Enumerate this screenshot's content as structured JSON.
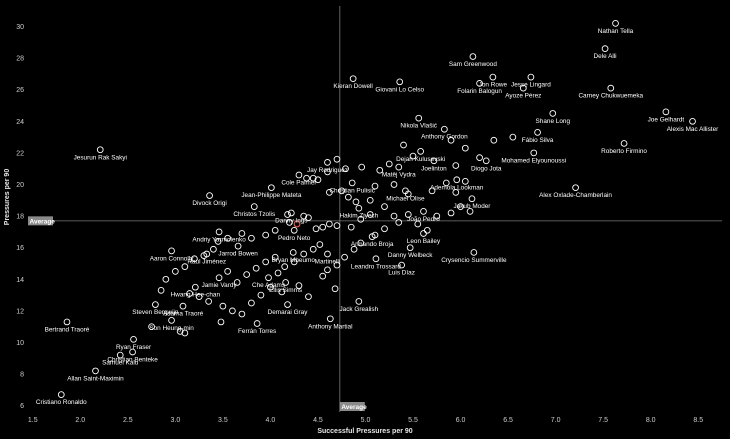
{
  "chart_data": {
    "type": "scatter",
    "xlabel": "Successful Pressures per 90",
    "ylabel": "Pressures per 90",
    "xlim": [
      1.45,
      8.75
    ],
    "ylim": [
      5.6,
      31.3
    ],
    "xticks": [
      "1.5",
      "2.0",
      "2.5",
      "3.0",
      "3.5",
      "4.0",
      "4.5",
      "5.0",
      "5.5",
      "6.0",
      "6.5",
      "7.0",
      "7.5",
      "8.0",
      "8.5"
    ],
    "yticks": [
      "6",
      "8",
      "10",
      "12",
      "14",
      "16",
      "18",
      "20",
      "22",
      "24",
      "26",
      "28",
      "30"
    ],
    "average_label": "Average",
    "average": {
      "x": 4.73,
      "y": 17.7
    },
    "colors": {
      "point": "#ffffff",
      "highlight": "#e8604c",
      "average_line": "#7a7a7a",
      "background": "#000000"
    },
    "labeled_points": [
      {
        "name": "Nathan Tella",
        "x": 7.63,
        "y": 30.2
      },
      {
        "name": "Dele Alli",
        "x": 7.52,
        "y": 28.6
      },
      {
        "name": "Sam Greenwood",
        "x": 6.13,
        "y": 28.1
      },
      {
        "name": "Jon Rowe",
        "x": 6.34,
        "y": 26.8
      },
      {
        "name": "Jesse Lingard",
        "x": 6.74,
        "y": 26.8
      },
      {
        "name": "Kieran Dowell",
        "x": 4.87,
        "y": 26.7
      },
      {
        "name": "Giovani Lo Celso",
        "x": 5.36,
        "y": 26.5
      },
      {
        "name": "Folarin Balogun",
        "x": 6.2,
        "y": 26.4
      },
      {
        "name": "Ayoze Pérez",
        "x": 6.66,
        "y": 26.1
      },
      {
        "name": "Carney Chukwuemeka",
        "x": 7.58,
        "y": 26.1
      },
      {
        "name": "Shane Long",
        "x": 6.97,
        "y": 24.5
      },
      {
        "name": "Joe Gelhardt",
        "x": 8.16,
        "y": 24.6
      },
      {
        "name": "Alexis Mac Allister",
        "x": 8.44,
        "y": 24.0
      },
      {
        "name": "Nikola Vlašić",
        "x": 5.56,
        "y": 24.2
      },
      {
        "name": "Fábio Silva",
        "x": 6.81,
        "y": 23.3
      },
      {
        "name": "Anthony Gordon",
        "x": 5.83,
        "y": 23.5
      },
      {
        "name": "Roberto Firmino",
        "x": 7.72,
        "y": 22.6
      },
      {
        "name": "Dejan Kulusevski",
        "x": 5.58,
        "y": 22.1
      },
      {
        "name": "Diogo Jota",
        "x": 6.27,
        "y": 21.5
      },
      {
        "name": "Mohamed Elyounoussi",
        "x": 6.77,
        "y": 22.0
      },
      {
        "name": "Jesurun Rak Sakyi",
        "x": 2.21,
        "y": 22.2
      },
      {
        "name": "Jay Rodriguez",
        "x": 4.6,
        "y": 21.4
      },
      {
        "name": "Joelinton",
        "x": 5.72,
        "y": 21.5
      },
      {
        "name": "Matěj Vydra",
        "x": 5.35,
        "y": 21.1
      },
      {
        "name": "Ademola Lookman",
        "x": 5.96,
        "y": 20.3
      },
      {
        "name": "Cole Palmer",
        "x": 4.3,
        "y": 20.6
      },
      {
        "name": "Christian Pulisic",
        "x": 4.86,
        "y": 20.1
      },
      {
        "name": "Jean-Philippe Mateta",
        "x": 4.01,
        "y": 19.8
      },
      {
        "name": "Michael Olise",
        "x": 5.42,
        "y": 19.6
      },
      {
        "name": "Jakub Moder",
        "x": 6.12,
        "y": 19.1
      },
      {
        "name": "Alex Oxlade-Chamberlain",
        "x": 7.21,
        "y": 19.8
      },
      {
        "name": "Divock Origi",
        "x": 3.36,
        "y": 19.3
      },
      {
        "name": "Hakim Ziyech",
        "x": 4.93,
        "y": 18.5
      },
      {
        "name": "Christos Tzolis",
        "x": 3.83,
        "y": 18.6
      },
      {
        "name": "Danny Ings",
        "x": 4.22,
        "y": 18.2
      },
      {
        "name": "João Pedro",
        "x": 5.61,
        "y": 18.3
      },
      {
        "name": "Andriy Yarmolenko",
        "x": 3.46,
        "y": 17.0
      },
      {
        "name": "Pedro Neto",
        "x": 4.25,
        "y": 17.1
      },
      {
        "name": "Jarrod Bowen",
        "x": 3.66,
        "y": 16.1
      },
      {
        "name": "Armando Broja",
        "x": 5.07,
        "y": 16.7
      },
      {
        "name": "Leon Bailey",
        "x": 5.61,
        "y": 16.9
      },
      {
        "name": "Raúl Jiménez",
        "x": 3.33,
        "y": 15.6
      },
      {
        "name": "Bryan Mbeumo",
        "x": 4.24,
        "y": 15.7
      },
      {
        "name": "Martinelli",
        "x": 4.6,
        "y": 15.6
      },
      {
        "name": "Danny Welbeck",
        "x": 5.47,
        "y": 16.0
      },
      {
        "name": "Aaron Connolly",
        "x": 2.96,
        "y": 15.8
      },
      {
        "name": "Crysencio Summerville",
        "x": 6.14,
        "y": 15.7
      },
      {
        "name": "Leandro Trossard",
        "x": 5.11,
        "y": 15.3
      },
      {
        "name": "Luis Díaz",
        "x": 5.38,
        "y": 14.9
      },
      {
        "name": "Jamie Vardy",
        "x": 3.46,
        "y": 14.1
      },
      {
        "name": "Che Adams",
        "x": 3.98,
        "y": 14.1
      },
      {
        "name": "Ellis Simms",
        "x": 4.16,
        "y": 13.8
      },
      {
        "name": "Hwang Hee-chan",
        "x": 3.21,
        "y": 13.5
      },
      {
        "name": "Steven Bergwijn",
        "x": 2.79,
        "y": 12.4
      },
      {
        "name": "Adama Traoré",
        "x": 3.08,
        "y": 12.3
      },
      {
        "name": "Demarai Gray",
        "x": 4.18,
        "y": 12.4
      },
      {
        "name": "Jack Grealish",
        "x": 4.93,
        "y": 12.6
      },
      {
        "name": "Son Heung-min",
        "x": 2.96,
        "y": 11.4
      },
      {
        "name": "Ferrán Torres",
        "x": 3.86,
        "y": 11.2
      },
      {
        "name": "Anthony Martial",
        "x": 4.63,
        "y": 11.5
      },
      {
        "name": "Bertrand Traoré",
        "x": 1.86,
        "y": 11.3
      },
      {
        "name": "Ryan Fraser",
        "x": 2.56,
        "y": 10.2
      },
      {
        "name": "Christian Benteke",
        "x": 2.55,
        "y": 9.4
      },
      {
        "name": "Samuel Kalu",
        "x": 2.42,
        "y": 9.2
      },
      {
        "name": "Allan Saint-Maximin",
        "x": 2.16,
        "y": 8.2
      },
      {
        "name": "Cristiano Ronaldo",
        "x": 1.8,
        "y": 6.7
      }
    ],
    "unlabeled_points": [
      {
        "x": 4.38,
        "y": 20.4
      },
      {
        "x": 4.45,
        "y": 20.4
      },
      {
        "x": 4.5,
        "y": 20.3
      },
      {
        "x": 4.6,
        "y": 20.8
      },
      {
        "x": 4.62,
        "y": 19.5
      },
      {
        "x": 4.75,
        "y": 19.6
      },
      {
        "x": 4.82,
        "y": 19.2
      },
      {
        "x": 4.9,
        "y": 18.9
      },
      {
        "x": 5.05,
        "y": 19.0
      },
      {
        "x": 5.1,
        "y": 19.9
      },
      {
        "x": 5.3,
        "y": 20.0
      },
      {
        "x": 5.45,
        "y": 19.4
      },
      {
        "x": 5.7,
        "y": 19.6
      },
      {
        "x": 5.85,
        "y": 20.1
      },
      {
        "x": 5.95,
        "y": 19.5
      },
      {
        "x": 6.05,
        "y": 20.2
      },
      {
        "x": 6.1,
        "y": 18.3
      },
      {
        "x": 6.0,
        "y": 18.6
      },
      {
        "x": 5.9,
        "y": 18.2
      },
      {
        "x": 5.75,
        "y": 18.0
      },
      {
        "x": 5.45,
        "y": 18.1
      },
      {
        "x": 5.3,
        "y": 18.0
      },
      {
        "x": 5.2,
        "y": 18.6
      },
      {
        "x": 5.05,
        "y": 18.1
      },
      {
        "x": 4.95,
        "y": 17.8
      },
      {
        "x": 4.85,
        "y": 17.3
      },
      {
        "x": 4.7,
        "y": 17.4
      },
      {
        "x": 4.62,
        "y": 17.5
      },
      {
        "x": 4.55,
        "y": 17.3
      },
      {
        "x": 4.48,
        "y": 17.2
      },
      {
        "x": 4.4,
        "y": 17.9
      },
      {
        "x": 4.35,
        "y": 18.0
      },
      {
        "x": 4.2,
        "y": 17.6
      },
      {
        "x": 4.18,
        "y": 18.1
      },
      {
        "x": 4.05,
        "y": 17.1
      },
      {
        "x": 3.95,
        "y": 16.8
      },
      {
        "x": 3.8,
        "y": 16.6
      },
      {
        "x": 3.7,
        "y": 16.9
      },
      {
        "x": 3.55,
        "y": 16.6
      },
      {
        "x": 3.45,
        "y": 16.4
      },
      {
        "x": 3.4,
        "y": 15.9
      },
      {
        "x": 3.3,
        "y": 15.5
      },
      {
        "x": 3.2,
        "y": 15.3
      },
      {
        "x": 3.1,
        "y": 14.8
      },
      {
        "x": 3.0,
        "y": 14.5
      },
      {
        "x": 2.9,
        "y": 14.0
      },
      {
        "x": 2.85,
        "y": 13.3
      },
      {
        "x": 3.15,
        "y": 13.1
      },
      {
        "x": 3.25,
        "y": 12.9
      },
      {
        "x": 3.35,
        "y": 12.6
      },
      {
        "x": 3.5,
        "y": 12.3
      },
      {
        "x": 3.6,
        "y": 12.0
      },
      {
        "x": 3.7,
        "y": 11.8
      },
      {
        "x": 3.8,
        "y": 12.5
      },
      {
        "x": 3.9,
        "y": 13.0
      },
      {
        "x": 4.0,
        "y": 13.5
      },
      {
        "x": 4.08,
        "y": 14.4
      },
      {
        "x": 4.15,
        "y": 14.8
      },
      {
        "x": 4.25,
        "y": 15.1
      },
      {
        "x": 4.35,
        "y": 15.6
      },
      {
        "x": 4.45,
        "y": 15.9
      },
      {
        "x": 4.52,
        "y": 16.2
      },
      {
        "x": 4.6,
        "y": 14.6
      },
      {
        "x": 4.55,
        "y": 14.2
      },
      {
        "x": 4.7,
        "y": 14.9
      },
      {
        "x": 4.78,
        "y": 15.4
      },
      {
        "x": 4.88,
        "y": 15.9
      },
      {
        "x": 4.95,
        "y": 16.3
      },
      {
        "x": 5.1,
        "y": 16.8
      },
      {
        "x": 5.2,
        "y": 17.2
      },
      {
        "x": 5.35,
        "y": 17.6
      },
      {
        "x": 5.55,
        "y": 17.5
      },
      {
        "x": 5.65,
        "y": 17.1
      },
      {
        "x": 3.55,
        "y": 14.5
      },
      {
        "x": 3.65,
        "y": 13.8
      },
      {
        "x": 3.75,
        "y": 14.3
      },
      {
        "x": 3.85,
        "y": 14.7
      },
      {
        "x": 3.95,
        "y": 15.1
      },
      {
        "x": 4.05,
        "y": 15.4
      },
      {
        "x": 4.12,
        "y": 13.2
      },
      {
        "x": 4.3,
        "y": 13.6
      },
      {
        "x": 4.4,
        "y": 12.9
      },
      {
        "x": 3.05,
        "y": 10.7
      },
      {
        "x": 3.1,
        "y": 10.6
      },
      {
        "x": 3.48,
        "y": 11.3
      },
      {
        "x": 2.75,
        "y": 11.0
      },
      {
        "x": 4.68,
        "y": 13.4
      },
      {
        "x": 5.95,
        "y": 21.2
      },
      {
        "x": 6.2,
        "y": 21.7
      },
      {
        "x": 6.35,
        "y": 22.8
      },
      {
        "x": 6.55,
        "y": 23.0
      },
      {
        "x": 6.05,
        "y": 22.3
      },
      {
        "x": 5.9,
        "y": 22.8
      },
      {
        "x": 5.5,
        "y": 21.8
      },
      {
        "x": 5.4,
        "y": 22.5
      },
      {
        "x": 5.25,
        "y": 21.3
      },
      {
        "x": 5.15,
        "y": 20.9
      },
      {
        "x": 4.96,
        "y": 21.1
      },
      {
        "x": 4.79,
        "y": 21.0
      },
      {
        "x": 4.7,
        "y": 21.6
      }
    ],
    "highlight_point": {
      "x": 4.28,
      "y": 17.5
    }
  }
}
